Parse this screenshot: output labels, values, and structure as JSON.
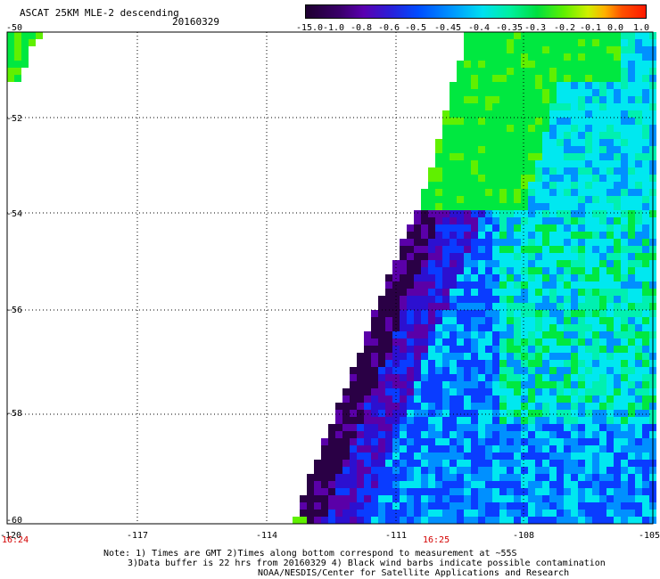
{
  "header": {
    "title": "ASCAT 25KM MLE-2 descending",
    "date": "20160329"
  },
  "colorbar": {
    "labels": [
      "-15.0",
      "-1.0",
      "-0.8",
      "-0.6",
      "-0.5",
      "-0.45",
      "-0.4",
      "-0.35",
      "-0.3",
      "-0.2",
      "-0.1",
      "0.0",
      "1.0"
    ]
  },
  "axes": {
    "y_labels": [
      "-50",
      "-52",
      "-54",
      "-56",
      "-58",
      "-60"
    ],
    "x_labels": [
      "-120",
      "-117",
      "-114",
      "-111",
      "-108",
      "-105"
    ],
    "time_left": "16:24",
    "time_mid": "16:25"
  },
  "notes": {
    "line1": "Note: 1) Times are GMT 2)Times along bottom correspond to measurement at ~55S",
    "line2": "3)Data buffer is 22 hrs from 20160329 4) Black wind barbs indicate possible contamination",
    "line3": "NOAA/NESDIS/Center for Satellite Applications and Research"
  },
  "map": {
    "lon_range": [
      -120,
      -105
    ],
    "lat_range": [
      -60,
      -50
    ],
    "colors": {
      "dark_purple": "#2a0045",
      "purple": "#5a00a8",
      "indigo": "#2c10d0",
      "blue": "#0a3cff",
      "mid_blue": "#0090ff",
      "cyan": "#00e8f0",
      "teal": "#00f0b0",
      "green": "#00e840",
      "lime": "#60f000"
    }
  }
}
